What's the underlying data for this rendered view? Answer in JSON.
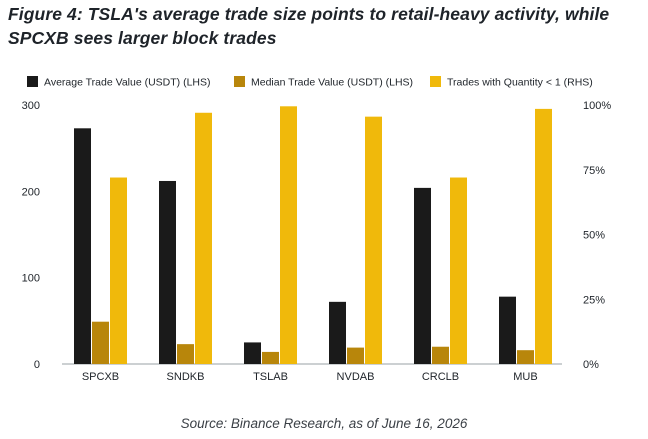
{
  "title": "Figure 4: TSLA's average trade size points to retail-heavy activity, while SPCXB sees larger block trades",
  "source": "Source: Binance Research, as of June 16, 2026",
  "colors": {
    "avg": "#1a1a1a",
    "median": "#b8860b",
    "trades": "#f0b90b",
    "axis": "#9aa0a6"
  },
  "chart_data": {
    "type": "bar",
    "categories": [
      "SPCXB",
      "SNDKB",
      "TSLAB",
      "NVDAB",
      "CRCLB",
      "MUB"
    ],
    "series": [
      {
        "name": "Average Trade Value (USDT) (LHS)",
        "axis": "left",
        "values": [
          273,
          212,
          25,
          72,
          204,
          78
        ]
      },
      {
        "name": "Median Trade Value (USDT) (LHS)",
        "axis": "left",
        "values": [
          49,
          23,
          14,
          19,
          20,
          16
        ]
      },
      {
        "name": "Trades with Quantity < 1 (RHS)",
        "axis": "right",
        "values": [
          72,
          97,
          99.5,
          95.5,
          72,
          98.5
        ]
      }
    ],
    "left_axis": {
      "ylim": [
        0,
        300
      ],
      "ticks": [
        0,
        100,
        200,
        300
      ]
    },
    "right_axis": {
      "ylim": [
        0,
        100
      ],
      "ticks": [
        0,
        25,
        50,
        75,
        100
      ],
      "tick_labels": [
        "0%",
        "25%",
        "50%",
        "75%",
        "100%"
      ]
    },
    "legend_position": "top",
    "grid": false
  }
}
